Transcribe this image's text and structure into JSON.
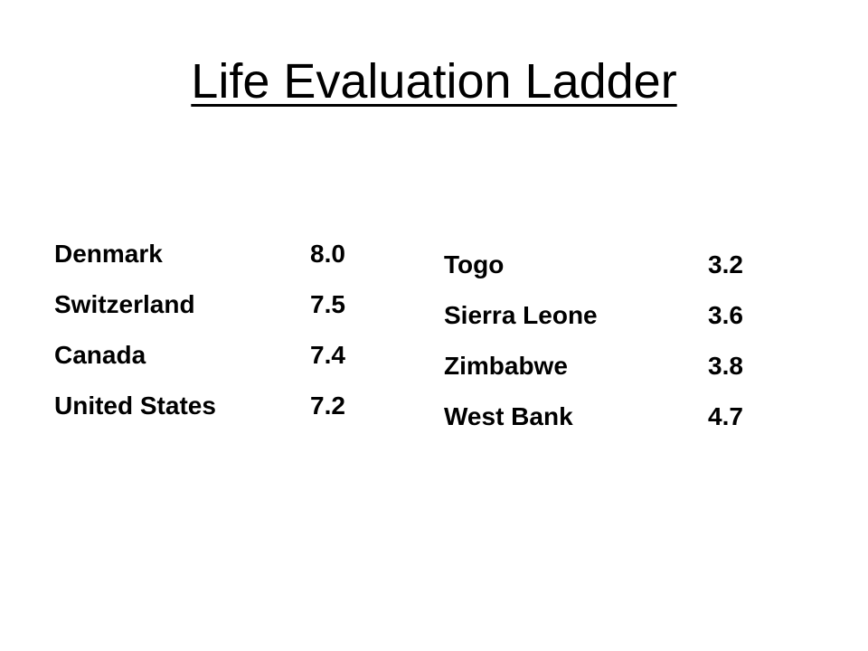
{
  "slide": {
    "title": "Life Evaluation Ladder"
  },
  "left_table": {
    "rows": [
      {
        "country": "Denmark",
        "score": "8.0"
      },
      {
        "country": "Switzerland",
        "score": "7.5"
      },
      {
        "country": "Canada",
        "score": "7.4"
      },
      {
        "country": "United States",
        "score": "7.2"
      }
    ]
  },
  "right_table": {
    "rows": [
      {
        "country": "Togo",
        "score": "3.2"
      },
      {
        "country": "Sierra Leone",
        "score": "3.6"
      },
      {
        "country": "Zimbabwe",
        "score": "3.8"
      },
      {
        "country": "West Bank",
        "score": "4.7"
      }
    ]
  }
}
